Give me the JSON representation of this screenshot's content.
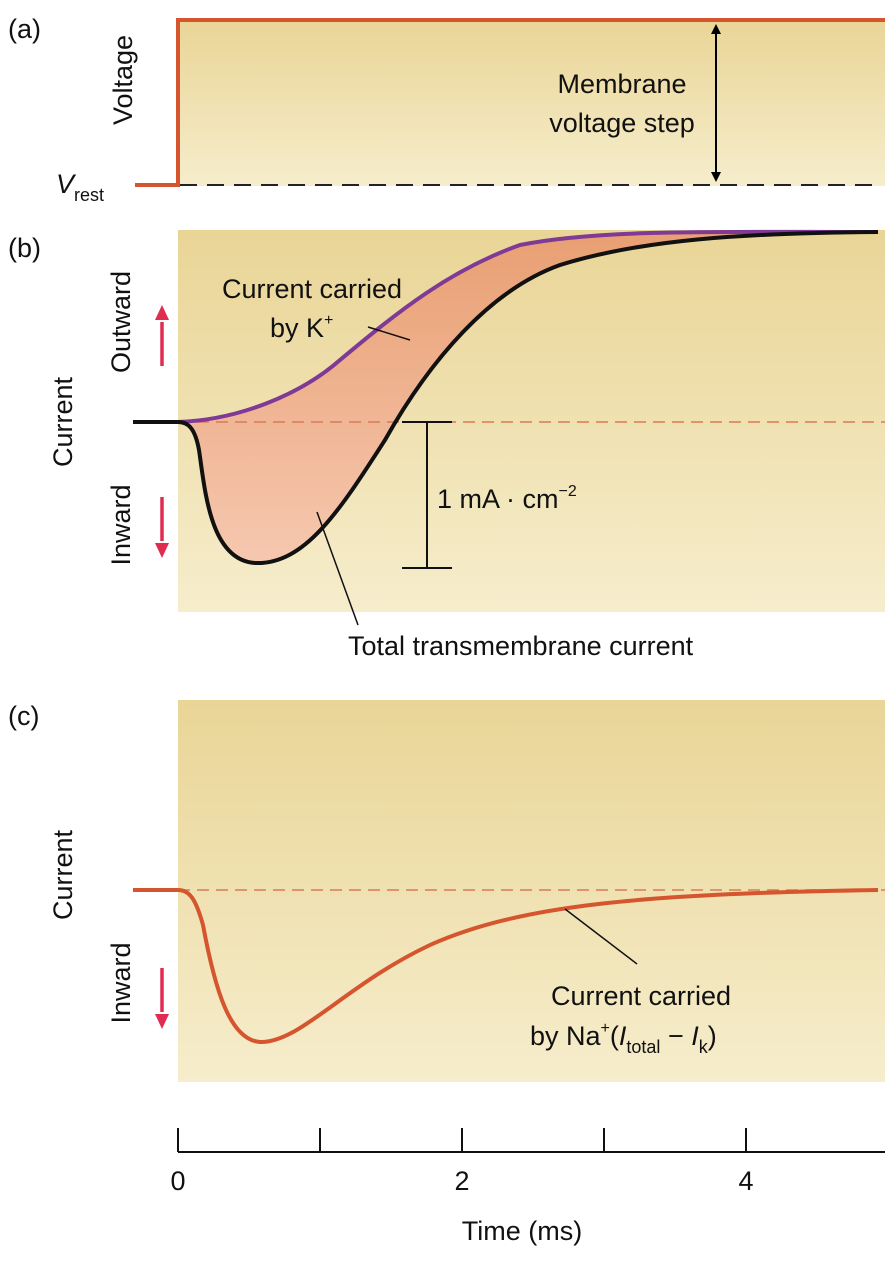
{
  "panel_a": {
    "tag": "(a)",
    "y_label": "Voltage",
    "v_rest": {
      "symbol": "V",
      "subscript": "rest"
    },
    "annotation": [
      "Membrane",
      "voltage step"
    ]
  },
  "panel_b": {
    "tag": "(b)",
    "y_label": "Current",
    "outward_label": "Outward",
    "inward_label": "Inward",
    "k_annotation": {
      "line1": "Current carried",
      "line2_prefix": "by K",
      "line2_sup": "+"
    },
    "scale_bar": {
      "prefix": "1 mA · cm",
      "sup": "−2"
    },
    "total_annotation": "Total transmembrane current"
  },
  "panel_c": {
    "tag": "(c)",
    "y_label": "Current",
    "inward_label": "Inward",
    "na_annotation": {
      "line1": "Current carried",
      "line2_a": "by Na",
      "line2_sup": "+",
      "line2_b": "(",
      "i1": "I",
      "i1_sub": "total",
      "minus": " − ",
      "i2": "I",
      "i2_sub": "k",
      "close": ")"
    }
  },
  "time_axis": {
    "label": "Time (ms)",
    "ticks": [
      0,
      1,
      2,
      3,
      4,
      5
    ],
    "tick_labels": [
      "0",
      "",
      "2",
      "",
      "4",
      ""
    ]
  },
  "colors": {
    "panel_top": "#e9d596",
    "panel_bottom": "#f6edcc",
    "voltage_trace": "#d4552e",
    "k_trace": "#7e3a94",
    "total_trace": "#111111",
    "na_trace": "#d4552e",
    "fill_top": "#e9a074",
    "fill_bottom": "#f6c8b0",
    "dashed_b_c": "#d97a55",
    "dashed_a": "#222222",
    "arrow_red": "#e02c50"
  }
}
